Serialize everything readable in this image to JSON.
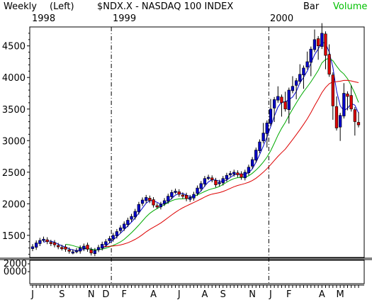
{
  "header": {
    "period": "Weekly",
    "axis_side": "(Left)",
    "title": "$NDX.X - NASDAQ 100 INDEX",
    "bar_label": "Bar",
    "volume_label": "Volume"
  },
  "colors": {
    "volume": "#00c000",
    "up_candle": "#0000cc",
    "down_candle": "#dd0000",
    "ma_short": "#0000cc",
    "ma_mid": "#00aa00",
    "ma_long": "#dd0000"
  },
  "chart_data": {
    "type": "candlestick",
    "ylim": [
      1150,
      4800
    ],
    "yticks": [
      1500,
      2000,
      2500,
      3000,
      3500,
      4000,
      4500
    ],
    "ytick_labels": [
      "1500",
      "2000",
      "2500",
      "3000",
      "3500",
      "4000",
      "4500"
    ],
    "volume_tick_labels": [
      "2000",
      "0000"
    ],
    "month_labels": [
      "J",
      "S",
      "N",
      "D",
      "F",
      "A",
      "J",
      "A",
      "S",
      "N",
      "J",
      "F",
      "A",
      "M"
    ],
    "year_labels": [
      {
        "label": "1998",
        "week": 0
      },
      {
        "label": "1999",
        "week": 22
      },
      {
        "label": "2000",
        "week": 65
      }
    ],
    "year_dividers": [
      22,
      65
    ],
    "month_label_weeks": [
      0,
      8,
      16,
      20,
      25,
      33,
      40,
      47,
      52,
      60,
      65,
      70,
      79,
      84
    ],
    "close": [
      1320,
      1380,
      1420,
      1440,
      1400,
      1370,
      1350,
      1320,
      1300,
      1280,
      1250,
      1240,
      1260,
      1300,
      1330,
      1280,
      1220,
      1260,
      1310,
      1360,
      1400,
      1450,
      1500,
      1560,
      1620,
      1680,
      1740,
      1800,
      1880,
      1990,
      2060,
      2100,
      2050,
      1980,
      1960,
      1990,
      2050,
      2120,
      2180,
      2200,
      2150,
      2120,
      2080,
      2100,
      2150,
      2250,
      2320,
      2400,
      2420,
      2380,
      2300,
      2340,
      2400,
      2450,
      2480,
      2500,
      2460,
      2420,
      2500,
      2580,
      2700,
      2850,
      2980,
      3120,
      3280,
      3500,
      3650,
      3700,
      3600,
      3500,
      3800,
      3860,
      3950,
      4050,
      4150,
      4250,
      4450,
      4600,
      4500,
      4700,
      4350,
      4050,
      3550,
      3200,
      3400,
      3750,
      3700,
      3500,
      3300,
      3250
    ]
  }
}
